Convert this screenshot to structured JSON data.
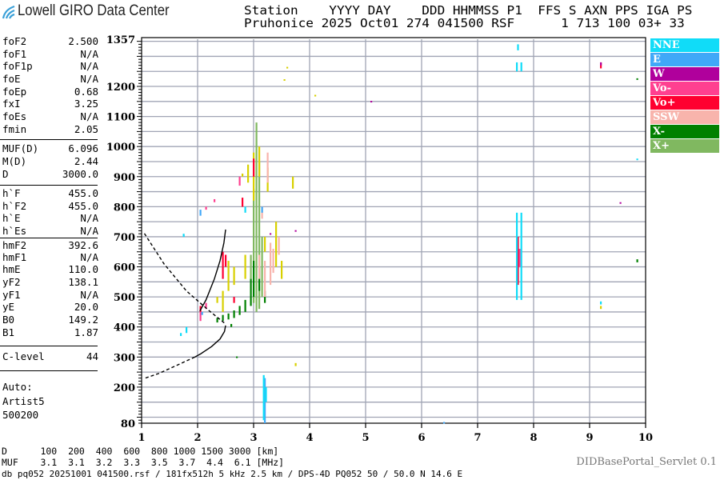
{
  "app": {
    "title": "Lowell GIRO Data Center"
  },
  "header": {
    "line1": "Station    YYYY DAY    DDD HHMMSS P1  FFS S AXN PPS IGA PS",
    "line2": "Pruhonice 2025 Oct01 274 041500 RSF      1 713 100 03+ 33"
  },
  "params": [
    {
      "label": "foF2",
      "value": "2.500"
    },
    {
      "label": "foF1",
      "value": "N/A"
    },
    {
      "label": "foF1p",
      "value": "N/A"
    },
    {
      "label": "foE",
      "value": "N/A"
    },
    {
      "label": "foEp",
      "value": "0.68"
    },
    {
      "label": "fxI",
      "value": "3.25"
    },
    {
      "label": "foEs",
      "value": "N/A"
    },
    {
      "label": "fmin",
      "value": "2.05"
    },
    {
      "label": "MUF(D)",
      "value": "6.096"
    },
    {
      "label": "M(D)",
      "value": "2.44"
    },
    {
      "label": "D",
      "value": "3000.0"
    },
    {
      "label": "h`F",
      "value": "455.0"
    },
    {
      "label": "h`F2",
      "value": "455.0"
    },
    {
      "label": "h`E",
      "value": "N/A"
    },
    {
      "label": "h`Es",
      "value": "N/A"
    },
    {
      "label": "hmF2",
      "value": "392.6"
    },
    {
      "label": "hmF1",
      "value": "N/A"
    },
    {
      "label": "hmE",
      "value": "110.0"
    },
    {
      "label": "yF2",
      "value": "138.1"
    },
    {
      "label": "yF1",
      "value": "N/A"
    },
    {
      "label": "yE",
      "value": "20.0"
    },
    {
      "label": "B0",
      "value": "149.2"
    },
    {
      "label": "B1",
      "value": "1.87"
    },
    {
      "label": "C-level",
      "value": "44"
    }
  ],
  "autoscaling": {
    "line1": "Auto:",
    "line2": "Artist5",
    "line3": "500200"
  },
  "footer": {
    "d_row": "D      100  200  400  600  800 1000 1500 3000 [km]",
    "muf_row": "MUF    3.1  3.1  3.2  3.3  3.5  3.7  4.4  6.1 [MHz]",
    "info": "db pq052 20251001 041500.rsf / 181fx512h 5 kHz 2.5 km / DPS-4D PQ052 50 / 50.0 N 14.6 E",
    "servlet": "DIDBasePortal_Servlet 0.1"
  },
  "legend": [
    {
      "label": "NNE",
      "color": "#10dcf8"
    },
    {
      "label": "E",
      "color": "#40a8f8"
    },
    {
      "label": "W",
      "color": "#b0009c"
    },
    {
      "label": "Vo-",
      "color": "#ff4090"
    },
    {
      "label": "Vo+",
      "color": "#ff0030"
    },
    {
      "label": "SSW",
      "color": "#f8b4ac"
    },
    {
      "label": "X-",
      "color": "#008000"
    },
    {
      "label": "X+",
      "color": "#80b860"
    }
  ],
  "chart_data": {
    "type": "scatter",
    "xlim": [
      1,
      10
    ],
    "ylim": [
      80,
      1357
    ],
    "x_ticks": [
      "1",
      "2",
      "3",
      "4",
      "5",
      "6",
      "7",
      "8",
      "9",
      "10"
    ],
    "y_ticks": [
      "1357",
      "1200",
      "1100",
      "1000",
      "900",
      "800",
      "700",
      "600",
      "500",
      "400",
      "300",
      "200",
      "80"
    ],
    "grid": true,
    "legend_placement": "right",
    "unlabeled_color": "#d8d000",
    "echo_segments_fields": [
      "frequency_MHz",
      "height_low_km",
      "height_high_km",
      "mode_index"
    ],
    "echo_segments": [
      [
        3.05,
        450,
        1080,
        7
      ],
      [
        3.1,
        460,
        950,
        7
      ],
      [
        3.0,
        480,
        860,
        7
      ],
      [
        3.15,
        500,
        700,
        7
      ],
      [
        2.95,
        560,
        640,
        7
      ],
      [
        2.45,
        420,
        440,
        6
      ],
      [
        2.55,
        425,
        445,
        6
      ],
      [
        2.65,
        430,
        455,
        6
      ],
      [
        2.75,
        440,
        470,
        6
      ],
      [
        2.85,
        450,
        490,
        6
      ],
      [
        2.95,
        470,
        560,
        6
      ],
      [
        3.0,
        500,
        620,
        6
      ],
      [
        3.1,
        520,
        600,
        6
      ],
      [
        2.6,
        400,
        410,
        6
      ],
      [
        3.2,
        480,
        520,
        6
      ],
      [
        2.35,
        415,
        430,
        6
      ],
      [
        9.85,
        615,
        625,
        6
      ],
      [
        9.85,
        1225,
        1227,
        6
      ],
      [
        2.7,
        300,
        302,
        6
      ],
      [
        2.45,
        450,
        520,
        8
      ],
      [
        2.55,
        520,
        620,
        8
      ],
      [
        2.65,
        540,
        600,
        8
      ],
      [
        2.9,
        880,
        940,
        8
      ],
      [
        3.0,
        820,
        980,
        8
      ],
      [
        3.1,
        900,
        1000,
        8
      ],
      [
        3.25,
        850,
        930,
        8
      ],
      [
        3.4,
        600,
        750,
        8
      ],
      [
        3.5,
        560,
        620,
        8
      ],
      [
        3.7,
        860,
        900,
        8
      ],
      [
        2.8,
        900,
        910,
        8
      ],
      [
        3.2,
        650,
        700,
        8
      ],
      [
        2.85,
        560,
        640,
        8
      ],
      [
        3.6,
        1260,
        1265,
        8
      ],
      [
        4.1,
        1170,
        1172,
        8
      ],
      [
        3.75,
        270,
        280,
        8
      ],
      [
        9.2,
        460,
        470,
        8
      ],
      [
        3.55,
        1220,
        1224,
        8
      ],
      [
        2.35,
        480,
        500,
        8
      ],
      [
        3.2,
        500,
        620,
        5
      ],
      [
        3.3,
        540,
        680,
        5
      ],
      [
        3.35,
        580,
        660,
        5
      ],
      [
        3.25,
        880,
        980,
        5
      ],
      [
        3.45,
        640,
        700,
        5
      ],
      [
        3.1,
        560,
        640,
        5
      ],
      [
        3.15,
        760,
        800,
        5
      ],
      [
        2.45,
        560,
        650,
        4
      ],
      [
        2.5,
        600,
        640,
        4
      ],
      [
        2.05,
        440,
        470,
        4
      ],
      [
        3.0,
        900,
        960,
        4
      ],
      [
        2.8,
        800,
        830,
        4
      ],
      [
        7.72,
        540,
        700,
        4
      ],
      [
        9.2,
        1260,
        1280,
        4
      ],
      [
        2.65,
        480,
        500,
        4
      ],
      [
        2.05,
        420,
        450,
        3
      ],
      [
        2.15,
        460,
        480,
        3
      ],
      [
        2.75,
        870,
        900,
        3
      ],
      [
        2.15,
        790,
        800,
        3
      ],
      [
        7.75,
        600,
        660,
        3
      ],
      [
        2.3,
        815,
        825,
        3
      ],
      [
        3.3,
        710,
        712,
        2
      ],
      [
        5.1,
        1150,
        1152,
        2
      ],
      [
        9.2,
        1270,
        1280,
        2
      ],
      [
        9.55,
        810,
        815,
        2
      ],
      [
        3.75,
        720,
        722,
        2
      ],
      [
        2.08,
        440,
        450,
        1
      ],
      [
        2.05,
        770,
        790,
        1
      ],
      [
        3.2,
        80,
        230,
        1
      ],
      [
        1.75,
        700,
        705,
        1
      ],
      [
        3.15,
        780,
        800,
        1
      ],
      [
        6.4,
        82,
        84,
        1
      ],
      [
        7.7,
        490,
        780,
        0
      ],
      [
        7.78,
        490,
        780,
        0
      ],
      [
        7.7,
        1250,
        1280,
        0
      ],
      [
        7.78,
        1250,
        1280,
        0
      ],
      [
        7.72,
        1320,
        1340,
        0
      ],
      [
        3.18,
        90,
        240,
        0
      ],
      [
        1.8,
        380,
        400,
        0
      ],
      [
        1.75,
        700,
        710,
        0
      ],
      [
        2.85,
        780,
        800,
        0
      ],
      [
        9.2,
        475,
        485,
        0
      ],
      [
        9.85,
        955,
        960,
        0
      ],
      [
        3.22,
        150,
        200,
        0
      ],
      [
        1.7,
        370,
        380,
        0
      ]
    ],
    "profile_solid": [
      [
        2.04,
        453
      ],
      [
        2.15,
        490
      ],
      [
        2.3,
        560
      ],
      [
        2.4,
        620
      ],
      [
        2.47,
        680
      ],
      [
        2.5,
        724
      ]
    ],
    "profile_solid_lower": [
      [
        2.5,
        405
      ],
      [
        2.48,
        385
      ],
      [
        2.4,
        360
      ],
      [
        2.25,
        335
      ],
      [
        2.05,
        310
      ],
      [
        1.95,
        300
      ]
    ],
    "profile_dashed_upper": [
      [
        1.05,
        711
      ],
      [
        1.4,
        610
      ],
      [
        1.8,
        520
      ],
      [
        2.2,
        455
      ],
      [
        2.5,
        410
      ]
    ],
    "profile_dashed_lower": [
      [
        1.95,
        300
      ],
      [
        1.6,
        270
      ],
      [
        1.3,
        245
      ],
      [
        1.05,
        229
      ]
    ]
  }
}
